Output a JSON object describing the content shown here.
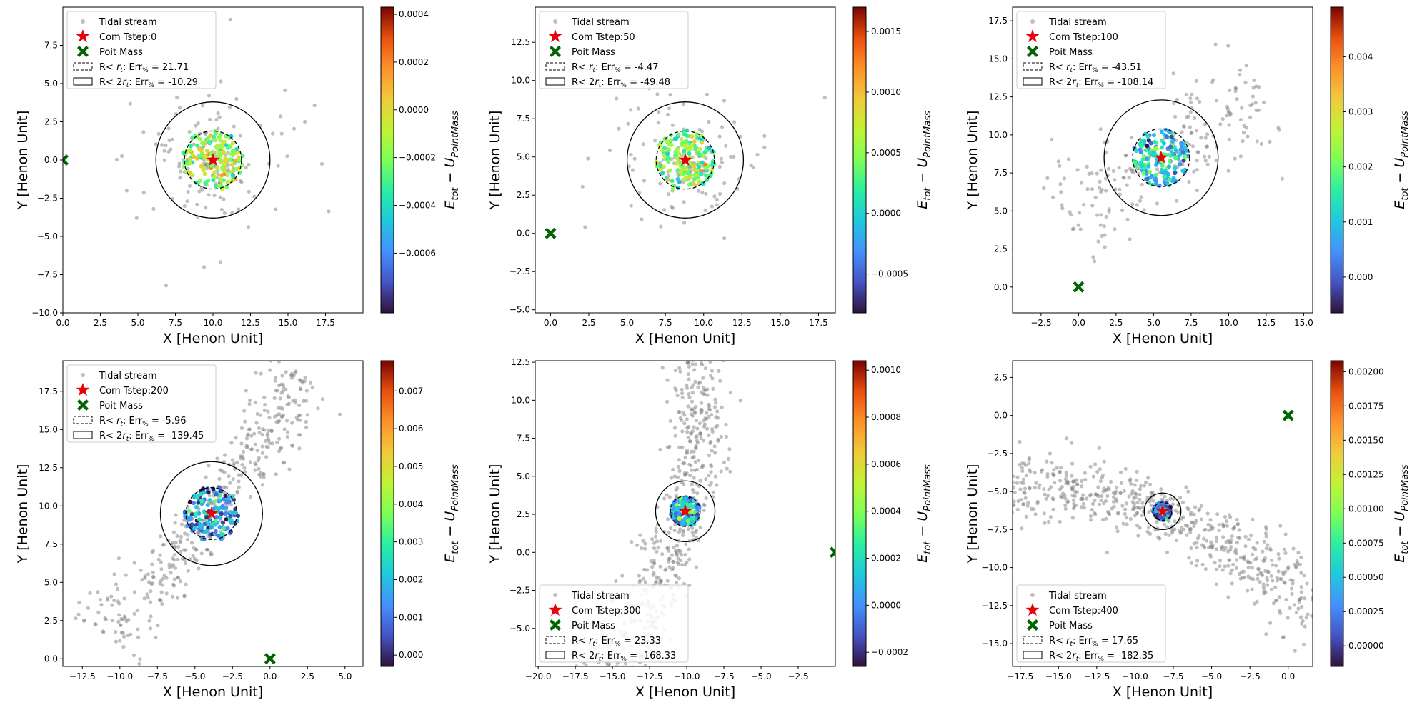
{
  "figure": {
    "stream_color": "#808080",
    "com_color": "#e8000b",
    "point_mass_color": "#006400",
    "colormap": "turbo"
  },
  "chart_data": [
    {
      "type": "scatter",
      "xlabel": "X [Henon Unit]",
      "ylabel": "Y [Henon Unit]",
      "xlim": [
        0,
        20
      ],
      "ylim": [
        -10,
        10
      ],
      "xticks": [
        "0.0",
        "2.5",
        "5.0",
        "7.5",
        "10.0",
        "12.5",
        "15.0",
        "17.5"
      ],
      "yticks": [
        "−10.0",
        "−7.5",
        "−5.0",
        "−2.5",
        "0.0",
        "2.5",
        "5.0",
        "7.5"
      ],
      "legend": {
        "position": "upper-left",
        "entries": [
          "Tidal stream",
          "Com Tstep:0",
          "Poit Mass",
          "R< r_t: Err% =  21.71",
          "R< 2r_t: Err% = -10.29"
        ]
      },
      "com": [
        10.0,
        0.0
      ],
      "point_mass": [
        0.0,
        0.0
      ],
      "r_t": 1.9,
      "core": {
        "radius": 2.0,
        "color_bias": 0.5
      },
      "stream": {
        "spread": 3.0,
        "arm_length": 0,
        "count": 150,
        "tangent_angle_deg": 0
      },
      "colorbar": {
        "label": "E_tot − U_PointMass",
        "min": -0.00085,
        "max": 0.00043,
        "ticks": [
          -0.0006,
          -0.0004,
          -0.0002,
          0.0,
          0.0002,
          0.0004
        ],
        "tick_labels": [
          "−0.0006",
          "−0.0004",
          "−0.0002",
          "0.0000",
          "0.0002",
          "0.0004"
        ]
      }
    },
    {
      "type": "scatter",
      "xlabel": "X [Henon Unit]",
      "ylabel": "Y [Henon Unit]",
      "xlim": [
        -1,
        18.6
      ],
      "ylim": [
        -5.2,
        14.8
      ],
      "xticks": [
        "0.0",
        "2.5",
        "5.0",
        "7.5",
        "10.0",
        "12.5",
        "15.0",
        "17.5"
      ],
      "yticks": [
        "−5.0",
        "−2.5",
        "0.0",
        "2.5",
        "5.0",
        "7.5",
        "10.0",
        "12.5"
      ],
      "legend": {
        "position": "upper-left",
        "entries": [
          "Tidal stream",
          "Com Tstep:50",
          "Poit Mass",
          "R< r_t: Err% =  -4.47",
          "R< 2r_t: Err% = -49.48"
        ]
      },
      "com": [
        8.8,
        4.8
      ],
      "point_mass": [
        0.0,
        0.0
      ],
      "r_t": 1.9,
      "core": {
        "radius": 2.0,
        "color_bias": 0.45
      },
      "stream": {
        "spread": 3.0,
        "arm_length": 0,
        "count": 140,
        "tangent_angle_deg": 0
      },
      "colorbar": {
        "label": "E_tot − U_PointMass",
        "min": -0.00082,
        "max": 0.0017,
        "ticks": [
          -0.0005,
          0.0,
          0.0005,
          0.001,
          0.0015
        ],
        "tick_labels": [
          "−0.0005",
          "0.0000",
          "0.0005",
          "0.0010",
          "0.0015"
        ]
      }
    },
    {
      "type": "scatter",
      "xlabel": "X [Henon Unit]",
      "ylabel": "Y [Henon Unit]",
      "xlim": [
        -4.4,
        15.6
      ],
      "ylim": [
        -1.7,
        18.4
      ],
      "xticks": [
        "−2.5",
        "0.0",
        "2.5",
        "5.0",
        "7.5",
        "10.0",
        "12.5",
        "15.0"
      ],
      "yticks": [
        "0.0",
        "2.5",
        "5.0",
        "7.5",
        "10.0",
        "12.5",
        "15.0",
        "17.5"
      ],
      "legend": {
        "position": "upper-left",
        "entries": [
          "Tidal stream",
          "Com Tstep:100",
          "Poit Mass",
          "R< r_t: Err% =  -43.51",
          "R< 2r_t: Err% = -108.14"
        ]
      },
      "com": [
        5.5,
        8.5
      ],
      "point_mass": [
        0.0,
        0.0
      ],
      "r_t": 1.9,
      "core": {
        "radius": 1.9,
        "color_bias": 0.25
      },
      "stream": {
        "spread": 1.3,
        "arm_length": 8,
        "count": 220,
        "tangent_angle_deg": 30
      },
      "colorbar": {
        "label": "E_tot − U_PointMass",
        "min": -0.00065,
        "max": 0.0049,
        "ticks": [
          0.0,
          0.001,
          0.002,
          0.003,
          0.004
        ],
        "tick_labels": [
          "0.000",
          "0.001",
          "0.002",
          "0.003",
          "0.004"
        ]
      }
    },
    {
      "type": "scatter",
      "xlabel": "X [Henon Unit]",
      "ylabel": "Y [Henon Unit]",
      "xlim": [
        -13.8,
        6.2
      ],
      "ylim": [
        -0.5,
        19.5
      ],
      "xticks": [
        "−12.5",
        "−10.0",
        "−7.5",
        "−5.0",
        "−2.5",
        "0.0",
        "2.5",
        "5.0"
      ],
      "yticks": [
        "0.0",
        "2.5",
        "5.0",
        "7.5",
        "10.0",
        "12.5",
        "15.0",
        "17.5"
      ],
      "legend": {
        "position": "upper-left",
        "entries": [
          "Tidal stream",
          "Com Tstep:200",
          "Poit Mass",
          "R< r_t: Err% =  -5.96",
          "R< 2r_t: Err% = -139.45"
        ]
      },
      "com": [
        -3.9,
        9.5
      ],
      "point_mass": [
        0.0,
        0.0
      ],
      "r_t": 1.7,
      "core": {
        "radius": 1.8,
        "color_bias": 0.15
      },
      "stream": {
        "spread": 0.8,
        "arm_length": 11,
        "count": 420,
        "tangent_angle_deg": 52
      },
      "colorbar": {
        "label": "E_tot − U_PointMass",
        "min": -0.0003,
        "max": 0.0078,
        "ticks": [
          0.0,
          0.001,
          0.002,
          0.003,
          0.004,
          0.005,
          0.006,
          0.007
        ],
        "tick_labels": [
          "0.000",
          "0.001",
          "0.002",
          "0.003",
          "0.004",
          "0.005",
          "0.006",
          "0.007"
        ]
      }
    },
    {
      "type": "scatter",
      "xlabel": "X [Henon Unit]",
      "ylabel": "Y [Henon Unit]",
      "xlim": [
        -20.2,
        0.0
      ],
      "ylim": [
        -7.5,
        12.6
      ],
      "xticks": [
        "−20.0",
        "−17.5",
        "−15.0",
        "−12.5",
        "−10.0",
        "−7.5",
        "−5.0",
        "−2.5"
      ],
      "yticks": [
        "−5.0",
        "−2.5",
        "0.0",
        "2.5",
        "5.0",
        "7.5",
        "10.0",
        "12.5"
      ],
      "legend": {
        "position": "lower-left",
        "entries": [
          "Tidal stream",
          "Com Tstep:300",
          "Poit Mass",
          "R< r_t: Err% =  23.33",
          "R< 2r_t: Err% = -168.33"
        ]
      },
      "com": [
        -10.1,
        2.7
      ],
      "point_mass": [
        0.0,
        0.0
      ],
      "r_t": 1.0,
      "core": {
        "radius": 1.0,
        "color_bias": 0.2
      },
      "stream": {
        "spread": 0.9,
        "arm_length": 14,
        "count": 650,
        "tangent_angle_deg": 75
      },
      "colorbar": {
        "label": "E_tot − U_PointMass",
        "min": -0.00026,
        "max": 0.00104,
        "ticks": [
          -0.0002,
          0.0,
          0.0002,
          0.0004,
          0.0006,
          0.0008,
          0.001
        ],
        "tick_labels": [
          "−0.0002",
          "0.0000",
          "0.0002",
          "0.0004",
          "0.0006",
          "0.0008",
          "0.0010"
        ]
      }
    },
    {
      "type": "scatter",
      "xlabel": "X [Henon Unit]",
      "ylabel": "Y [Henon Unit]",
      "xlim": [
        -18.0,
        1.6
      ],
      "ylim": [
        -16.5,
        3.6
      ],
      "xticks": [
        "−17.5",
        "−15.0",
        "−12.5",
        "−10.0",
        "−7.5",
        "−5.0",
        "−2.5",
        "0.0"
      ],
      "yticks": [
        "−15.0",
        "−12.5",
        "−10.0",
        "−7.5",
        "−5.0",
        "−2.5",
        "0.0",
        "2.5"
      ],
      "legend": {
        "position": "lower-left",
        "entries": [
          "Tidal stream",
          "Com Tstep:400",
          "Poit Mass",
          "R< r_t: Err% =  17.65",
          "R< 2r_t: Err% = -182.35"
        ]
      },
      "com": [
        -8.2,
        -6.3
      ],
      "point_mass": [
        0.0,
        0.0
      ],
      "r_t": 0.6,
      "core": {
        "radius": 0.6,
        "color_bias": 0.12
      },
      "stream": {
        "spread": 0.9,
        "arm_length": 12,
        "count": 650,
        "tangent_angle_deg": -20
      },
      "colorbar": {
        "label": "E_tot − U_PointMass",
        "min": -0.00015,
        "max": 0.00208,
        "ticks": [
          0.0,
          0.00025,
          0.0005,
          0.00075,
          0.001,
          0.00125,
          0.0015,
          0.00175,
          0.002
        ],
        "tick_labels": [
          "0.00000",
          "0.00025",
          "0.00050",
          "0.00075",
          "0.00100",
          "0.00125",
          "0.00150",
          "0.00175",
          "0.00200"
        ]
      }
    }
  ]
}
